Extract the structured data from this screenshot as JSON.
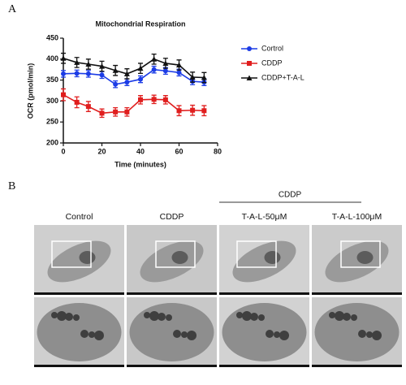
{
  "panel_labels": [
    "A",
    "B"
  ],
  "chart_data": {
    "type": "line",
    "title": "Mitochondrial Respiration",
    "x_label": "Time (minutes)",
    "y_label": "OCR (pmol/min)",
    "x": [
      0,
      7,
      13,
      20,
      27,
      33,
      40,
      47,
      53,
      60,
      67,
      73
    ],
    "series": [
      {
        "name": "Cortrol",
        "color": "#1c3ce6",
        "marker": "circle",
        "values": [
          365,
          366,
          365,
          362,
          340,
          345,
          352,
          375,
          372,
          368,
          347,
          345
        ],
        "errors": [
          8,
          8,
          8,
          8,
          8,
          8,
          8,
          8,
          8,
          8,
          8,
          8
        ]
      },
      {
        "name": "CDDP",
        "color": "#e01e1e",
        "marker": "square",
        "values": [
          315,
          297,
          287,
          271,
          274,
          274,
          303,
          304,
          303,
          277,
          278,
          277
        ],
        "errors": [
          14,
          13,
          12,
          10,
          10,
          10,
          10,
          10,
          10,
          12,
          12,
          12
        ]
      },
      {
        "name": "CDDP+T-A-L",
        "color": "#111111",
        "marker": "triangle",
        "values": [
          402,
          392,
          388,
          383,
          373,
          365,
          378,
          400,
          390,
          386,
          357,
          356
        ],
        "errors": [
          12,
          12,
          12,
          12,
          12,
          12,
          12,
          12,
          12,
          12,
          12,
          12
        ]
      }
    ],
    "xlim": [
      0,
      80
    ],
    "xticks": [
      0,
      20,
      40,
      60,
      80
    ],
    "ylim": [
      200,
      450
    ],
    "yticks": [
      200,
      250,
      300,
      350,
      400,
      450
    ]
  },
  "micrographs": {
    "group_label": "CDDP",
    "columns": [
      "Control",
      "CDDP",
      "T-A-L-50μM",
      "T-A-L-100μM"
    ]
  }
}
